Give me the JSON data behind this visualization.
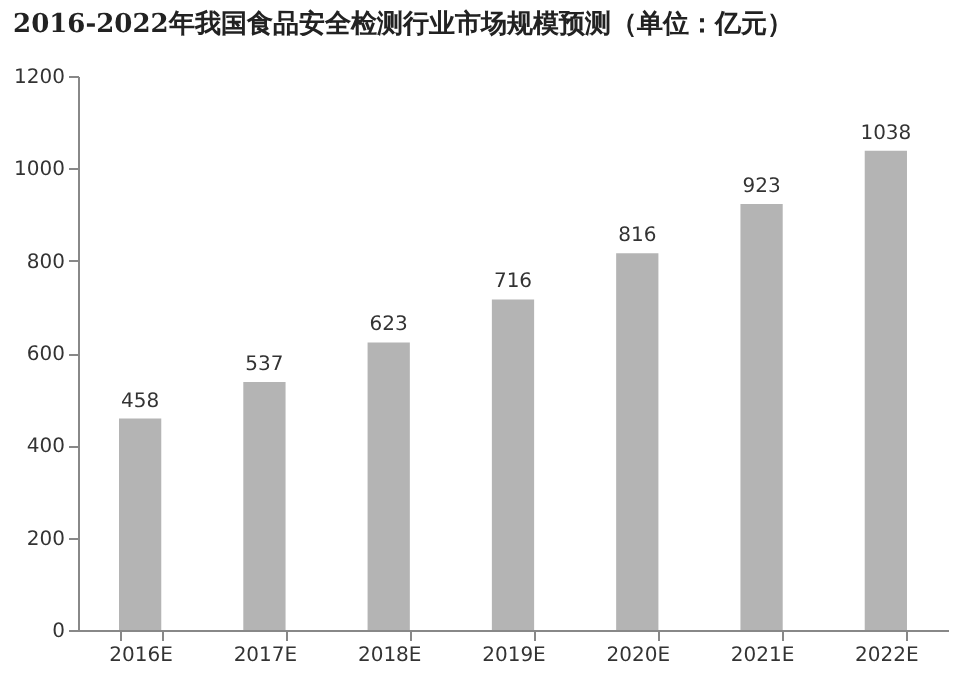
{
  "chart_data": {
    "type": "bar",
    "title": "2016-2022年我国食品安全检测行业市场规模预测（单位：亿元）",
    "categories": [
      "2016E",
      "2017E",
      "2018E",
      "2019E",
      "2020E",
      "2021E",
      "2022E"
    ],
    "values": [
      458,
      537,
      623,
      716,
      816,
      923,
      1038
    ],
    "color": "#b4b4b4",
    "ylim": [
      0,
      1200
    ],
    "yticks": [
      0,
      200,
      400,
      600,
      800,
      1000,
      1200
    ],
    "grid": false,
    "data_labels": true
  }
}
